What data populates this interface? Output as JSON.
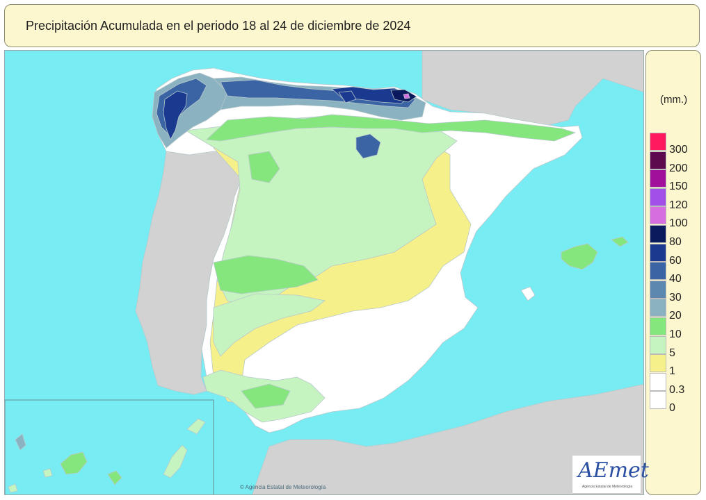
{
  "title": "Precipitación Acumulada en el periodo 18 al 24 de diciembre de 2024",
  "legend": {
    "unit": "(mm.)",
    "classes": [
      {
        "label": "300",
        "color": "#ff1a5e"
      },
      {
        "label": "200",
        "color": "#5e0a4e"
      },
      {
        "label": "150",
        "color": "#a0109a"
      },
      {
        "label": "120",
        "color": "#a24ee8"
      },
      {
        "label": "100",
        "color": "#d76ee0"
      },
      {
        "label": "80",
        "color": "#0a1a5c"
      },
      {
        "label": "60",
        "color": "#1a3a90"
      },
      {
        "label": "40",
        "color": "#3a64a4"
      },
      {
        "label": "30",
        "color": "#5c88b0"
      },
      {
        "label": "20",
        "color": "#8ab2c0"
      },
      {
        "label": "10",
        "color": "#86e67e"
      },
      {
        "label": "5",
        "color": "#c6f4c0"
      },
      {
        "label": "1",
        "color": "#f6f08a"
      },
      {
        "label": "0.3",
        "color": "#ffffff"
      },
      {
        "label": "0",
        "color": "#ffffff"
      }
    ]
  },
  "colors": {
    "sea": "#78ecf3",
    "land_outside": "#d2d2d2",
    "no_precip": "#ffffff",
    "trace": "#f6f08a",
    "low": "#c6f4c0",
    "moderate": "#86e67e",
    "blue_light": "#8ab2c0",
    "blue_mid": "#3a64a4",
    "blue_dark": "#1a3a90",
    "navy": "#0a1a5c",
    "pink": "#d76ee0"
  },
  "copyright": "© Agencia Estatal de Meteorología",
  "logo": {
    "text": "AEmet",
    "subtitle": "Agencia Estatal de Meteorología"
  }
}
